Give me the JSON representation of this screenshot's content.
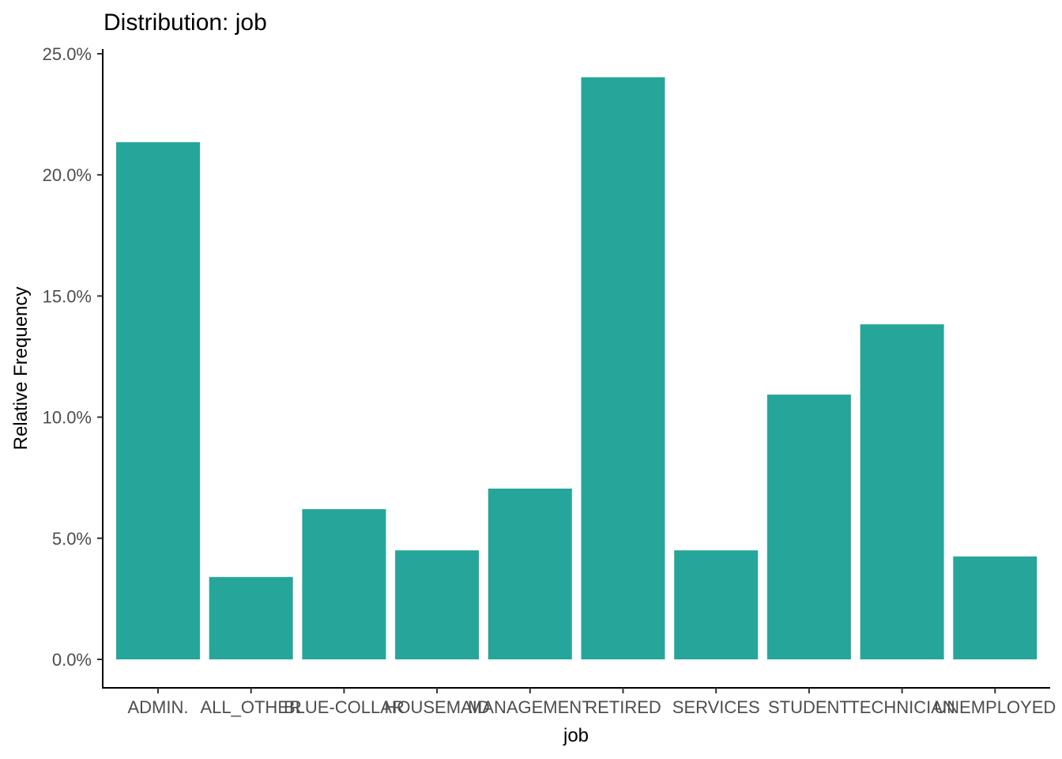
{
  "chart_data": {
    "type": "bar",
    "title": "Distribution: job",
    "xlabel": "job",
    "ylabel": "Relative Frequency",
    "categories": [
      "ADMIN.",
      "ALL_OTHER",
      "BLUE-COLLAR",
      "HOUSEMAID",
      "MANAGEMENT",
      "RETIRED",
      "SERVICES",
      "STUDENT",
      "TECHNICIAN",
      "UNEMPLOYED"
    ],
    "values": [
      0.2135,
      0.034,
      0.062,
      0.045,
      0.0705,
      0.2403,
      0.045,
      0.1093,
      0.1383,
      0.0425
    ],
    "ylim": [
      0,
      0.25
    ],
    "yticks": [
      0,
      0.05,
      0.1,
      0.15,
      0.2,
      0.25
    ],
    "ytick_labels": [
      "0.0%",
      "5.0%",
      "10.0%",
      "15.0%",
      "20.0%",
      "25.0%"
    ],
    "bar_color": "#26a69a",
    "grid": false,
    "legend": "none"
  }
}
